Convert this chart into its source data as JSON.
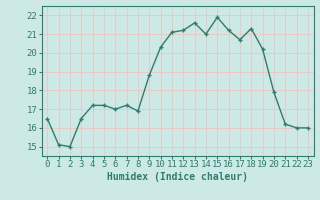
{
  "x": [
    0,
    1,
    2,
    3,
    4,
    5,
    6,
    7,
    8,
    9,
    10,
    11,
    12,
    13,
    14,
    15,
    16,
    17,
    18,
    19,
    20,
    21,
    22,
    23
  ],
  "y": [
    16.5,
    15.1,
    15.0,
    16.5,
    17.2,
    17.2,
    17.0,
    17.2,
    16.9,
    18.8,
    20.3,
    21.1,
    21.2,
    21.6,
    21.0,
    21.9,
    21.2,
    20.7,
    21.3,
    20.2,
    17.9,
    16.2,
    16.0,
    16.0
  ],
  "line_color": "#2e7d6e",
  "marker": "+",
  "marker_size": 3,
  "marker_linewidth": 1.0,
  "bg_color": "#cce9e5",
  "grid_color": "#e8c8c8",
  "xlabel": "Humidex (Indice chaleur)",
  "ylim": [
    14.5,
    22.5
  ],
  "xlim": [
    -0.5,
    23.5
  ],
  "yticks": [
    15,
    16,
    17,
    18,
    19,
    20,
    21,
    22
  ],
  "xticks": [
    0,
    1,
    2,
    3,
    4,
    5,
    6,
    7,
    8,
    9,
    10,
    11,
    12,
    13,
    14,
    15,
    16,
    17,
    18,
    19,
    20,
    21,
    22,
    23
  ],
  "tick_color": "#2e7d6e",
  "label_color": "#2e7d6e",
  "xlabel_fontsize": 7,
  "tick_fontsize": 6.5,
  "linewidth": 1.0
}
